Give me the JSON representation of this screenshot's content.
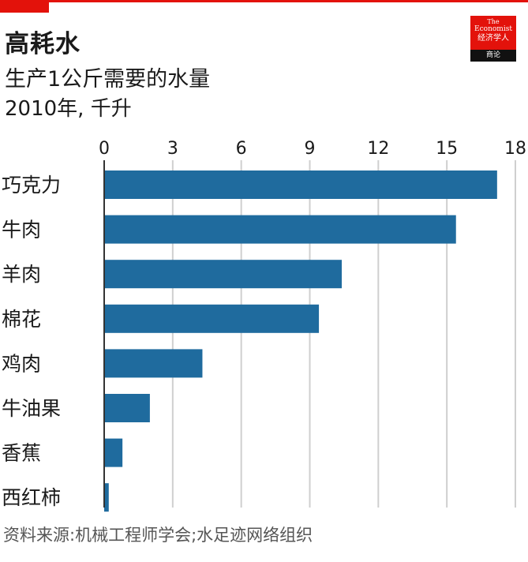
{
  "title": "高耗水",
  "subtitle": "生产1公斤需要的水量",
  "unit_line": "2010年, 千升",
  "logo": {
    "line1": "The",
    "line2": "Economist",
    "line3": "经济学人",
    "strip": "商论"
  },
  "source": "资料来源:机械工程师学会;水足迹网络组织",
  "colors": {
    "bar": "#1f6b9e",
    "grid": "#cfcfcf",
    "accent": "#e3120b"
  },
  "chart_data": {
    "type": "bar",
    "orientation": "horizontal",
    "categories": [
      "巧克力",
      "牛肉",
      "羊肉",
      "棉花",
      "鸡肉",
      "牛油果",
      "香蕉",
      "西红柿"
    ],
    "values": [
      17.2,
      15.4,
      10.4,
      9.4,
      4.3,
      2.0,
      0.8,
      0.2
    ],
    "xlim": [
      0,
      18
    ],
    "xticks": [
      0,
      3,
      6,
      9,
      12,
      15,
      18
    ],
    "tick_position": "top",
    "grid": true
  }
}
